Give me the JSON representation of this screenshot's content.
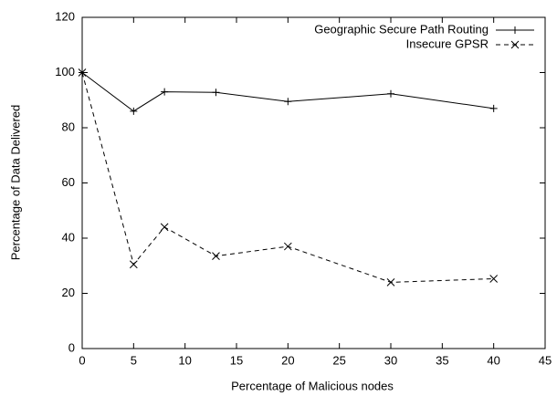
{
  "chart_data": {
    "type": "line",
    "xlabel": "Percentage of Malicious nodes",
    "ylabel": "Percentage of Data Delivered",
    "x": [
      0,
      5,
      8,
      13,
      20,
      30,
      40
    ],
    "series": [
      {
        "name": "Geographic Secure Path Routing",
        "color": "#000000",
        "line_style": "solid",
        "marker": "plus",
        "values": [
          100,
          86,
          93,
          92.8,
          89.5,
          92.3,
          87
        ]
      },
      {
        "name": "Insecure GPSR",
        "color": "#000000",
        "line_style": "dashed",
        "marker": "cross",
        "values": [
          100,
          30.5,
          44,
          33.5,
          37,
          24,
          25.3
        ]
      }
    ],
    "xlim": [
      0,
      45
    ],
    "xticks": [
      0,
      5,
      10,
      15,
      20,
      25,
      30,
      35,
      40,
      45
    ],
    "ylim": [
      0,
      120
    ],
    "yticks": [
      0,
      20,
      40,
      60,
      80,
      100,
      120
    ],
    "grid": false,
    "legend": "upper right"
  }
}
